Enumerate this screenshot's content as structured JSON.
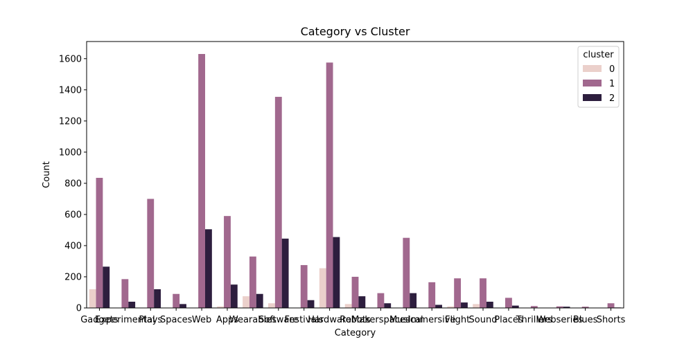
{
  "chart_data": {
    "type": "bar",
    "title": "Category vs Cluster",
    "xlabel": "Category",
    "ylabel": "Count",
    "ylim": [
      0,
      1710
    ],
    "yticks": [
      0,
      200,
      400,
      600,
      800,
      1000,
      1200,
      1400,
      1600
    ],
    "categories": [
      "Gadgets",
      "Experimental",
      "Plays",
      "Spaces",
      "Web",
      "Apps",
      "Wearables",
      "Software",
      "Festivals",
      "Hardware",
      "Robots",
      "Makerspaces",
      "Musical",
      "Immersive",
      "Flight",
      "Sound",
      "Places",
      "Thrillers",
      "Webseries",
      "Blues",
      "Shorts"
    ],
    "legend": {
      "title": "cluster",
      "placement": "top-right"
    },
    "series": [
      {
        "name": "0",
        "color": "#ebd0cb",
        "values": [
          120,
          0,
          0,
          0,
          0,
          10,
          75,
          30,
          0,
          255,
          25,
          0,
          0,
          0,
          10,
          25,
          0,
          0,
          0,
          0,
          0
        ]
      },
      {
        "name": "1",
        "color": "#a1688e",
        "values": [
          835,
          185,
          700,
          90,
          1630,
          590,
          330,
          1355,
          275,
          1575,
          200,
          95,
          450,
          165,
          190,
          190,
          65,
          12,
          10,
          8,
          30
        ]
      },
      {
        "name": "2",
        "color": "#2d1e3e",
        "values": [
          265,
          40,
          120,
          25,
          505,
          150,
          90,
          445,
          50,
          455,
          75,
          30,
          95,
          20,
          35,
          40,
          15,
          0,
          8,
          0,
          3
        ]
      }
    ]
  }
}
